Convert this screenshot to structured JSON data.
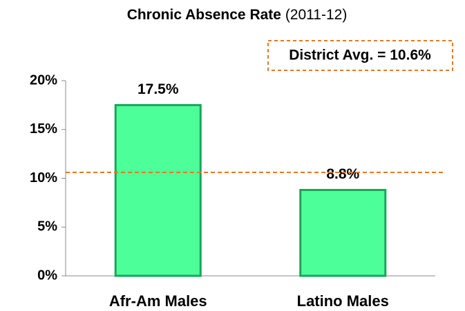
{
  "chart_data": {
    "type": "bar",
    "title": "Chronic Absence Rate",
    "subtitle": "(2011-12)",
    "categories": [
      "Afr-Am Males",
      "Latino Males"
    ],
    "values": [
      17.5,
      8.8
    ],
    "value_labels": [
      "17.5%",
      "8.8%"
    ],
    "color": "#4dff99",
    "ylim": [
      0,
      20
    ],
    "yticks": [
      {
        "value": 0,
        "label": "0%"
      },
      {
        "value": 5,
        "label": "5%"
      },
      {
        "value": 10,
        "label": "10%"
      },
      {
        "value": 15,
        "label": "15%"
      },
      {
        "value": 20,
        "label": "20%"
      }
    ],
    "grid": false,
    "reference_line": {
      "value": 10.6,
      "label": "District Avg. = 10.6%",
      "color": "#e87722"
    }
  }
}
